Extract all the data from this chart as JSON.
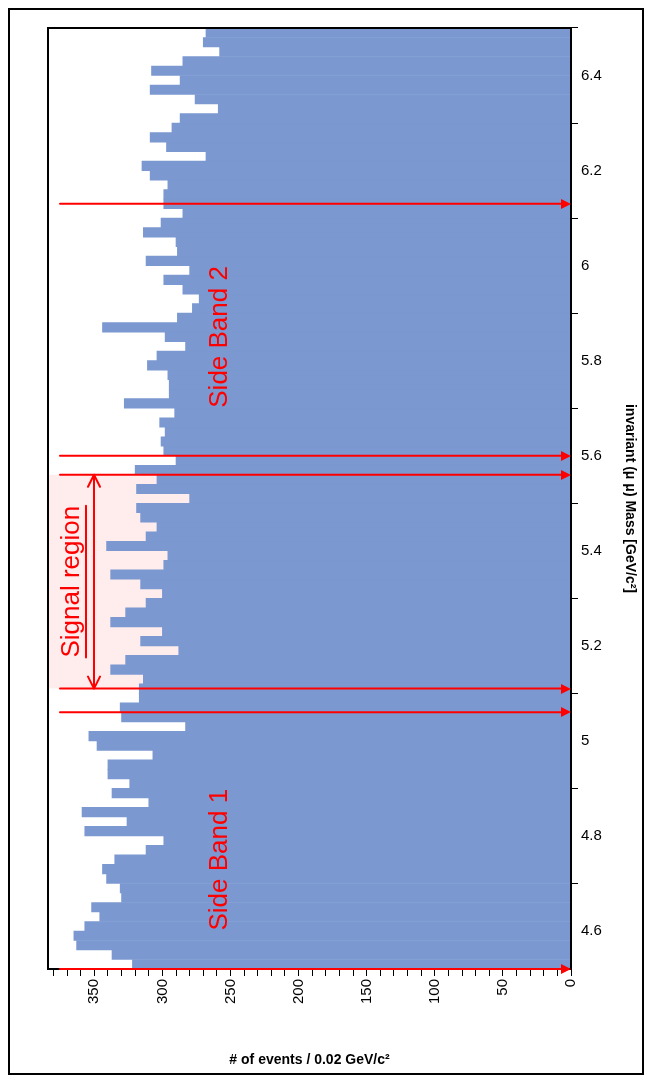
{
  "chart_data": {
    "type": "histogram",
    "orientation": "horizontal",
    "xlabel": "# of events / 0.02 GeV/c²",
    "ylabel": "invariant (μ μ) Mass [GeV/c²]",
    "bins": [
      4.52,
      4.54,
      4.56,
      4.58,
      4.6,
      4.62,
      4.64,
      4.66,
      4.68,
      4.7,
      4.72,
      4.74,
      4.76,
      4.78,
      4.8,
      4.82,
      4.84,
      4.86,
      4.88,
      4.9,
      4.92,
      4.94,
      4.96,
      4.98,
      5,
      5.02,
      5.04,
      5.06,
      5.08,
      5.1,
      5.12,
      5.14,
      5.16,
      5.18,
      5.2,
      5.22,
      5.24,
      5.26,
      5.28,
      5.3,
      5.32,
      5.34,
      5.36,
      5.38,
      5.4,
      5.42,
      5.44,
      5.46,
      5.48,
      5.5,
      5.52,
      5.54,
      5.56,
      5.58,
      5.6,
      5.62,
      5.64,
      5.66,
      5.68,
      5.7,
      5.72,
      5.74,
      5.76,
      5.78,
      5.8,
      5.82,
      5.84,
      5.86,
      5.88,
      5.9,
      5.92,
      5.94,
      5.96,
      5.98,
      6,
      6.02,
      6.04,
      6.06,
      6.08,
      6.1,
      6.12,
      6.14,
      6.16,
      6.18,
      6.2,
      6.22,
      6.24,
      6.26,
      6.28,
      6.3,
      6.32,
      6.34,
      6.36,
      6.38,
      6.4,
      6.42,
      6.44,
      6.46,
      6.48,
      6.5
    ],
    "values": [
      322,
      337,
      363,
      365,
      357,
      346,
      352,
      330,
      331,
      341,
      344,
      335,
      312,
      299,
      357,
      326,
      359,
      310,
      337,
      324,
      340,
      340,
      307,
      348,
      354,
      283,
      330,
      331,
      317,
      317,
      314,
      338,
      327,
      288,
      316,
      300,
      338,
      327,
      312,
      300,
      316,
      338,
      299,
      296,
      341,
      312,
      304,
      316,
      319,
      280,
      319,
      304,
      320,
      290,
      299,
      301,
      298,
      302,
      291,
      328,
      295,
      295,
      296,
      311,
      304,
      283,
      298,
      344,
      289,
      278,
      273,
      285,
      299,
      280,
      312,
      289,
      290,
      314,
      301,
      285,
      299,
      299,
      296,
      309,
      315,
      268,
      297,
      309,
      293,
      287,
      259,
      276,
      309,
      287,
      308,
      285,
      258,
      270,
      268
    ],
    "color": "#7b98d0",
    "ylim": [
      4.52,
      6.5
    ],
    "yticks": [
      4.6,
      4.8,
      5,
      5.2,
      5.4,
      5.6,
      5.8,
      6,
      6.2,
      6.4
    ],
    "xlim": [
      384,
      0
    ],
    "xticks": [
      0,
      {
        "value": 10,
        "label": null
      },
      {
        "value": 20,
        "label": null
      },
      {
        "value": 30,
        "label": null
      },
      {
        "value": 40,
        "label": null
      },
      50,
      {
        "value": 60,
        "label": null
      },
      {
        "value": 70,
        "label": null
      },
      {
        "value": 80,
        "label": null
      },
      {
        "value": 90,
        "label": null
      },
      100,
      {
        "value": 110,
        "label": null
      },
      {
        "value": 120,
        "label": null
      },
      {
        "value": 130,
        "label": null
      },
      {
        "value": 140,
        "label": null
      },
      150,
      {
        "value": 160,
        "label": null
      },
      {
        "value": 170,
        "label": null
      },
      {
        "value": 180,
        "label": null
      },
      {
        "value": 190,
        "label": null
      },
      200,
      {
        "value": 210,
        "label": null
      },
      {
        "value": 220,
        "label": null
      },
      {
        "value": 230,
        "label": null
      },
      {
        "value": 240,
        "label": null
      },
      250,
      {
        "value": 260,
        "label": null
      },
      {
        "value": 270,
        "label": null
      },
      {
        "value": 280,
        "label": null
      },
      {
        "value": 290,
        "label": null
      },
      300,
      {
        "value": 310,
        "label": null
      },
      {
        "value": 320,
        "label": null
      },
      {
        "value": 330,
        "label": null
      },
      {
        "value": 340,
        "label": null
      },
      350,
      {
        "value": 360,
        "label": null
      },
      {
        "value": 370,
        "label": null
      },
      {
        "value": 380,
        "label": null
      }
    ],
    "ref_lines": [
      {
        "axis": "y",
        "value": 4.52,
        "color": "#ff0000"
      },
      {
        "axis": "y",
        "value": 5.06,
        "color": "#ff0000"
      },
      {
        "axis": "y",
        "value": 5.11,
        "color": "#ff0000"
      },
      {
        "axis": "y",
        "value": 5.56,
        "color": "#ff0000"
      },
      {
        "axis": "y",
        "value": 5.6,
        "color": "#ff0000"
      },
      {
        "axis": "y",
        "value": 6.13,
        "color": "#ff0000"
      }
    ],
    "bands": [
      {
        "axis": "y",
        "from": 5.11,
        "to": 5.56,
        "label": "Signal region",
        "color": "#ff0000"
      }
    ],
    "annotations": [
      {
        "text": "Side Band 1",
        "x": 258,
        "y": 4.75
      },
      {
        "text": "Side Band 2",
        "x": 258,
        "y": 5.85
      }
    ]
  }
}
